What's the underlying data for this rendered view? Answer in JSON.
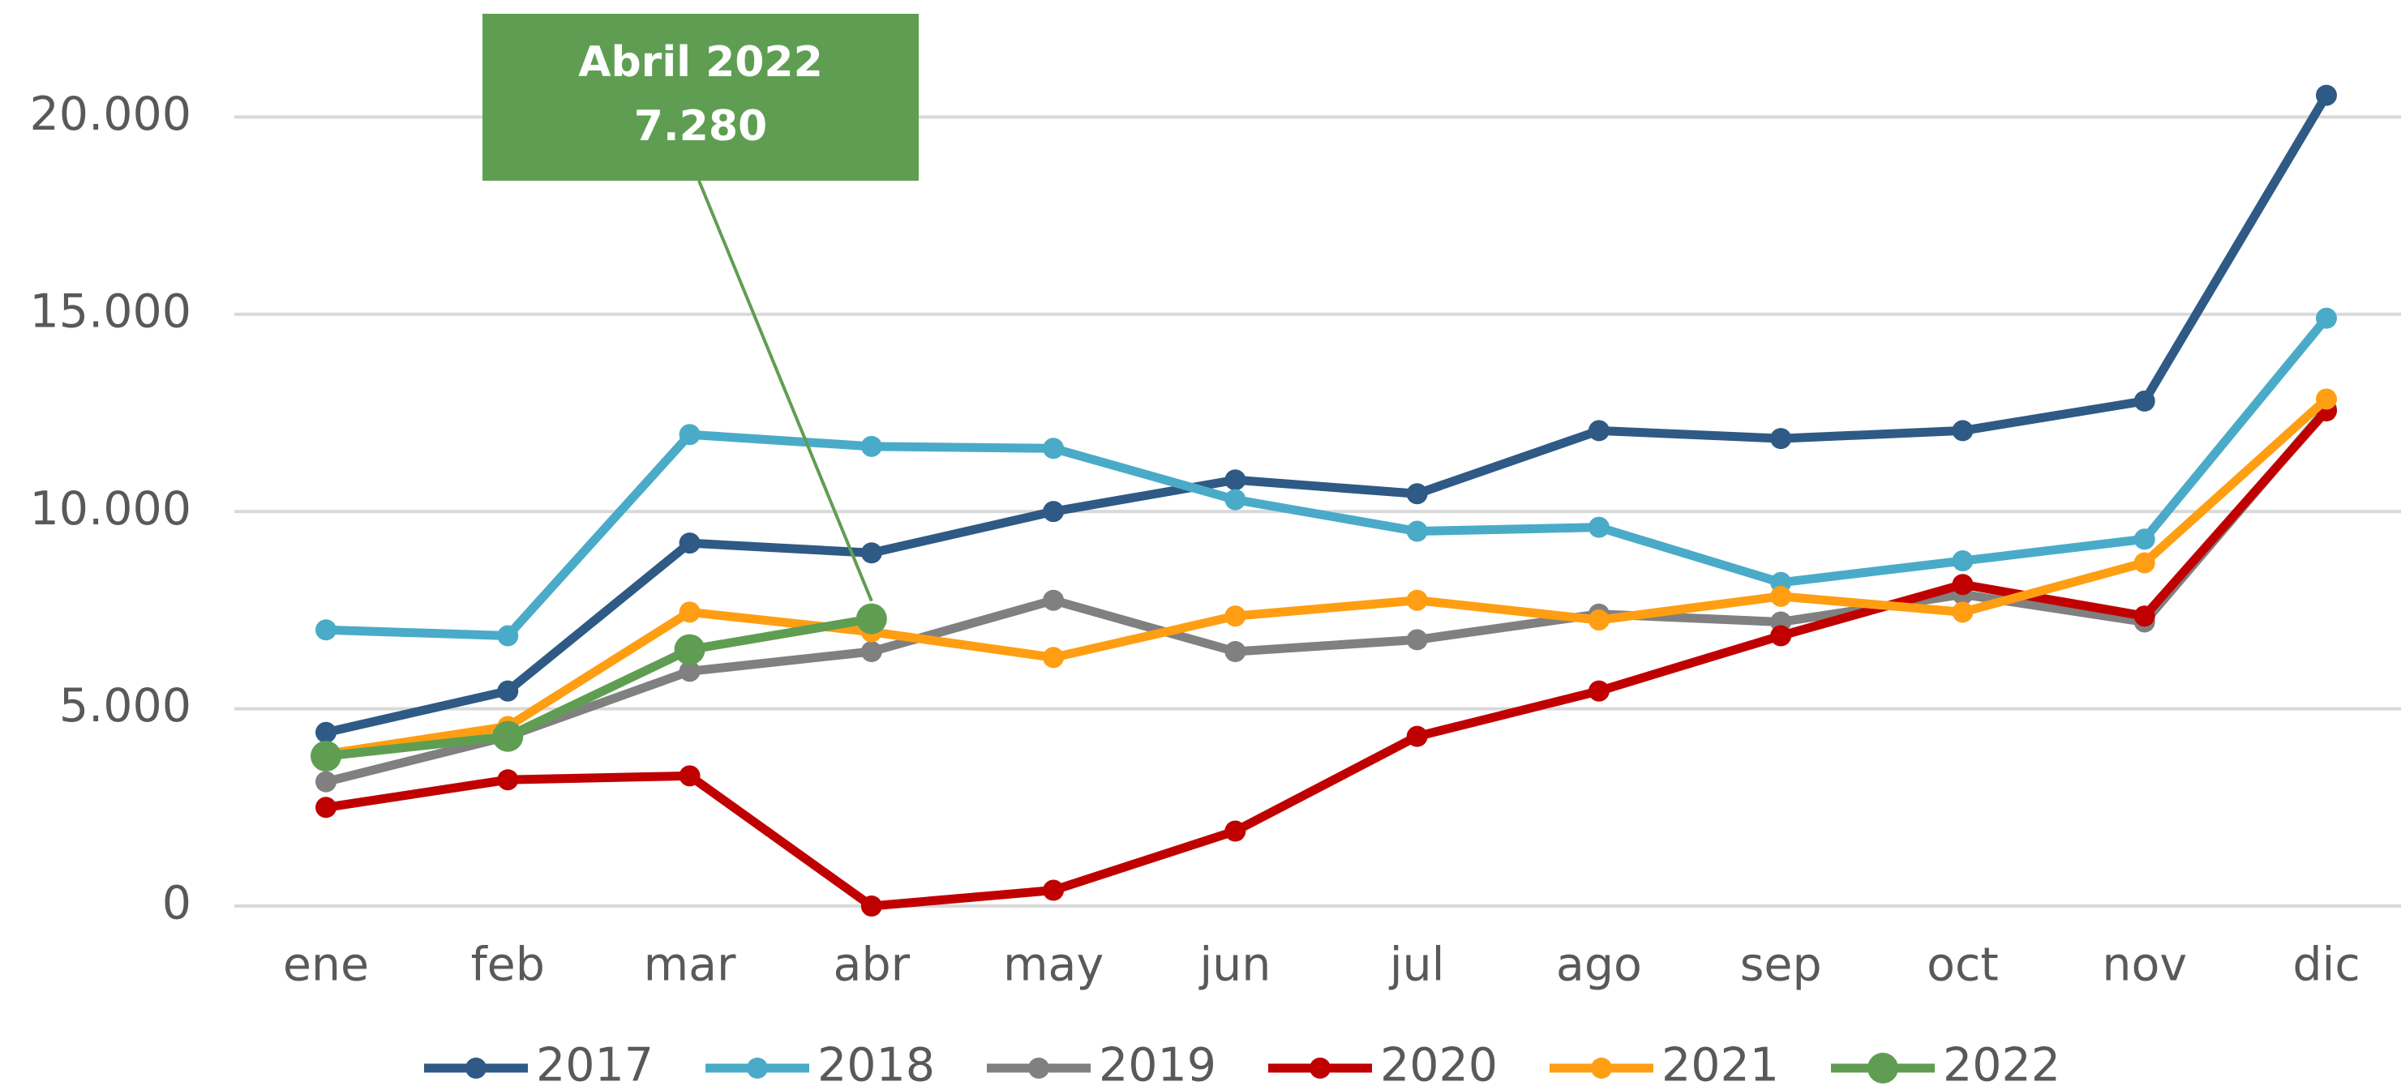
{
  "chart_data": {
    "type": "line",
    "categories": [
      "ene",
      "feb",
      "mar",
      "abr",
      "may",
      "jun",
      "jul",
      "ago",
      "sep",
      "oct",
      "nov",
      "dic"
    ],
    "series": [
      {
        "name": "2017",
        "color": "#2e5a85",
        "values": [
          4400,
          5450,
          9200,
          8950,
          10000,
          10800,
          10450,
          12050,
          11850,
          12050,
          12800,
          20550
        ]
      },
      {
        "name": "2018",
        "color": "#4aabc8",
        "values": [
          7000,
          6850,
          11950,
          11650,
          11600,
          10300,
          9500,
          9600,
          8200,
          8750,
          9300,
          14900
        ]
      },
      {
        "name": "2019",
        "color": "#808080",
        "values": [
          3150,
          4300,
          5950,
          6450,
          7750,
          6450,
          6750,
          7400,
          7200,
          7900,
          7200,
          12600
        ]
      },
      {
        "name": "2020",
        "color": "#c00000",
        "values": [
          2500,
          3200,
          3300,
          0,
          400,
          1900,
          4300,
          5450,
          6850,
          8150,
          7350,
          12550
        ]
      },
      {
        "name": "2021",
        "color": "#ff9e12",
        "values": [
          3850,
          4550,
          7450,
          6950,
          6300,
          7350,
          7750,
          7250,
          7850,
          7450,
          8700,
          12850
        ]
      },
      {
        "name": "2022",
        "color": "#5f9e52",
        "values": [
          3800,
          4300,
          6500,
          7280,
          null,
          null,
          null,
          null,
          null,
          null,
          null,
          null
        ]
      }
    ],
    "ylim": [
      0,
      22000
    ],
    "yticks": [
      0,
      {
        "value": 5000,
        "label": "5.000"
      },
      {
        "value": 10000,
        "label": "10.000"
      },
      {
        "value": 15000,
        "label": "15.000"
      },
      {
        "value": 20000,
        "label": "20.000"
      }
    ],
    "grid": true,
    "legend": "bottom",
    "annotation": {
      "lines": [
        "Abril 2022",
        "7.280"
      ],
      "color": "#5f9e52",
      "series": 5,
      "index": 3
    }
  }
}
